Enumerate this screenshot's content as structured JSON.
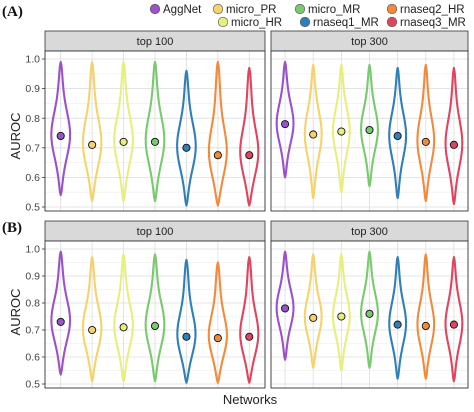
{
  "figure": {
    "panel_labels": [
      "(A)",
      "(B)"
    ],
    "facets": [
      "top 100",
      "top 300"
    ],
    "ylabel": "AUROC",
    "xlabel": "Networks"
  },
  "legend": [
    {
      "name": "AggNet",
      "color": "#9b51c9"
    },
    {
      "name": "micro_PR",
      "color": "#f5d36a"
    },
    {
      "name": "micro_HR",
      "color": "#e8ee7c"
    },
    {
      "name": "micro_MR",
      "color": "#79c96f"
    },
    {
      "name": "rnaseq1_MR",
      "color": "#2f7fb8"
    },
    {
      "name": "rnaseq2_HR",
      "color": "#f28a3c"
    },
    {
      "name": "rnaseq3_MR",
      "color": "#e04460"
    }
  ],
  "chart_data": [
    {
      "type": "violin",
      "panel": "(A)",
      "facet": "top 100",
      "categories": [
        "AggNet",
        "micro_PR",
        "micro_HR",
        "micro_MR",
        "rnaseq1_MR",
        "rnaseq2_HR",
        "rnaseq3_MR"
      ],
      "ylim": [
        0.5,
        1.0
      ],
      "yticks": [
        0.5,
        0.6,
        0.7,
        0.8,
        0.9,
        1.0
      ],
      "grid": true,
      "means": [
        0.74,
        0.71,
        0.72,
        0.72,
        0.7,
        0.675,
        0.675
      ],
      "ranges": [
        [
          0.54,
          0.99
        ],
        [
          0.52,
          0.99
        ],
        [
          0.52,
          0.99
        ],
        [
          0.52,
          0.99
        ],
        [
          0.505,
          0.96
        ],
        [
          0.505,
          0.99
        ],
        [
          0.505,
          0.97
        ]
      ]
    },
    {
      "type": "violin",
      "panel": "(A)",
      "facet": "top 300",
      "categories": [
        "AggNet",
        "micro_PR",
        "micro_HR",
        "micro_MR",
        "rnaseq1_MR",
        "rnaseq2_HR",
        "rnaseq3_MR"
      ],
      "ylim": [
        0.5,
        1.0
      ],
      "yticks": [
        0.5,
        0.6,
        0.7,
        0.8,
        0.9,
        1.0
      ],
      "grid": true,
      "means": [
        0.78,
        0.745,
        0.755,
        0.76,
        0.74,
        0.72,
        0.71
      ],
      "ranges": [
        [
          0.6,
          0.99
        ],
        [
          0.53,
          0.98
        ],
        [
          0.55,
          0.98
        ],
        [
          0.57,
          0.98
        ],
        [
          0.53,
          0.97
        ],
        [
          0.52,
          0.98
        ],
        [
          0.51,
          0.97
        ]
      ]
    },
    {
      "type": "violin",
      "panel": "(B)",
      "facet": "top 100",
      "categories": [
        "AggNet",
        "micro_PR",
        "micro_HR",
        "micro_MR",
        "rnaseq1_MR",
        "rnaseq2_HR",
        "rnaseq3_MR"
      ],
      "ylim": [
        0.5,
        1.0
      ],
      "yticks": [
        0.5,
        0.6,
        0.7,
        0.8,
        0.9,
        1.0
      ],
      "grid": true,
      "means": [
        0.73,
        0.7,
        0.71,
        0.715,
        0.675,
        0.67,
        0.675
      ],
      "ranges": [
        [
          0.535,
          0.99
        ],
        [
          0.51,
          0.97
        ],
        [
          0.51,
          0.98
        ],
        [
          0.51,
          0.98
        ],
        [
          0.505,
          0.96
        ],
        [
          0.505,
          0.95
        ],
        [
          0.505,
          0.97
        ]
      ]
    },
    {
      "type": "violin",
      "panel": "(B)",
      "facet": "top 300",
      "categories": [
        "AggNet",
        "micro_PR",
        "micro_HR",
        "micro_MR",
        "rnaseq1_MR",
        "rnaseq2_HR",
        "rnaseq3_MR"
      ],
      "ylim": [
        0.5,
        1.0
      ],
      "yticks": [
        0.5,
        0.6,
        0.7,
        0.8,
        0.9,
        1.0
      ],
      "grid": true,
      "means": [
        0.78,
        0.745,
        0.75,
        0.76,
        0.72,
        0.715,
        0.72
      ],
      "ranges": [
        [
          0.59,
          0.99
        ],
        [
          0.56,
          0.98
        ],
        [
          0.55,
          0.98
        ],
        [
          0.56,
          0.99
        ],
        [
          0.52,
          0.97
        ],
        [
          0.52,
          0.98
        ],
        [
          0.51,
          0.97
        ]
      ]
    }
  ]
}
